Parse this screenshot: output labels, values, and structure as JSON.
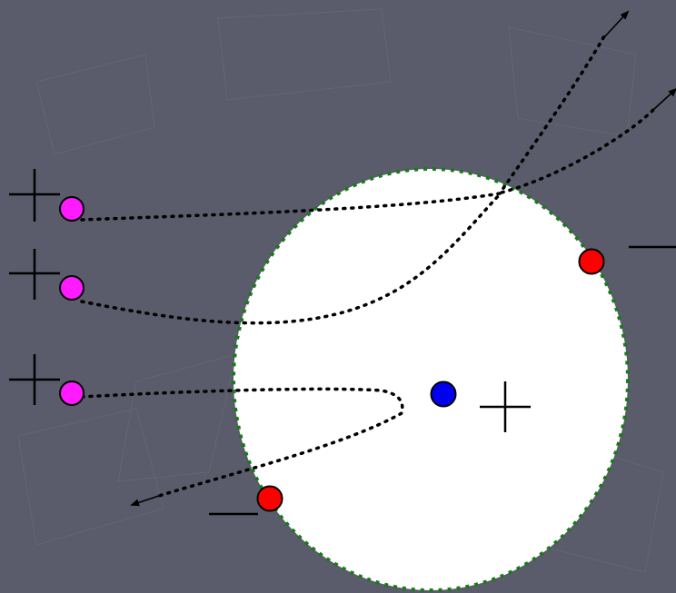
{
  "diagram": {
    "background_color": "#5a5c6b",
    "circle_fill": "#ffffff",
    "circle_border_color": "#1a7a1a",
    "trajectory_color": "#000000",
    "sign_color": "#000000",
    "particles": [
      {
        "id": "incoming-1",
        "kind": "positive",
        "color": "#ff1aff"
      },
      {
        "id": "incoming-2",
        "kind": "positive",
        "color": "#ff1aff"
      },
      {
        "id": "incoming-3",
        "kind": "positive",
        "color": "#ff1aff"
      },
      {
        "id": "nucleus",
        "kind": "nucleus",
        "color": "#0000ee"
      },
      {
        "id": "electron-upper",
        "kind": "negative",
        "color": "#ff0000"
      },
      {
        "id": "electron-lower",
        "kind": "negative",
        "color": "#ff0000"
      }
    ],
    "signs": [
      {
        "id": "plus-1",
        "symbol": "plus"
      },
      {
        "id": "plus-2",
        "symbol": "plus"
      },
      {
        "id": "plus-3",
        "symbol": "plus"
      },
      {
        "id": "plus-nucleus",
        "symbol": "plus"
      },
      {
        "id": "minus-upper",
        "symbol": "minus"
      },
      {
        "id": "minus-lower",
        "symbol": "minus"
      }
    ]
  }
}
